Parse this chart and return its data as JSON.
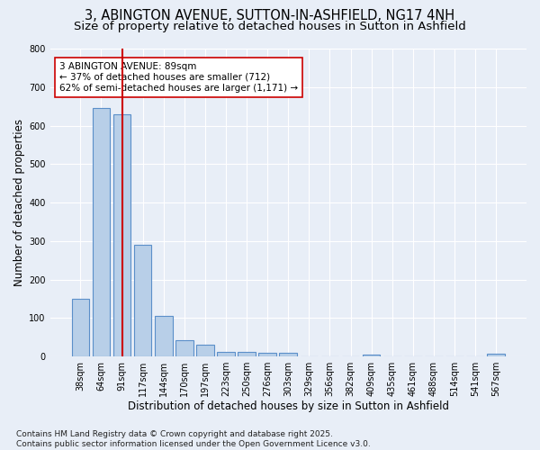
{
  "title": "3, ABINGTON AVENUE, SUTTON-IN-ASHFIELD, NG17 4NH",
  "subtitle": "Size of property relative to detached houses in Sutton in Ashfield",
  "xlabel": "Distribution of detached houses by size in Sutton in Ashfield",
  "ylabel": "Number of detached properties",
  "categories": [
    "38sqm",
    "64sqm",
    "91sqm",
    "117sqm",
    "144sqm",
    "170sqm",
    "197sqm",
    "223sqm",
    "250sqm",
    "276sqm",
    "303sqm",
    "329sqm",
    "356sqm",
    "382sqm",
    "409sqm",
    "435sqm",
    "461sqm",
    "488sqm",
    "514sqm",
    "541sqm",
    "567sqm"
  ],
  "values": [
    150,
    645,
    630,
    290,
    105,
    42,
    30,
    12,
    12,
    10,
    10,
    0,
    0,
    0,
    5,
    0,
    0,
    0,
    0,
    0,
    8
  ],
  "bar_color": "#b8cfe8",
  "bar_edge_color": "#5b8fc9",
  "vline_x_index": 2,
  "vline_color": "#cc0000",
  "annotation_text": "3 ABINGTON AVENUE: 89sqm\n← 37% of detached houses are smaller (712)\n62% of semi-detached houses are larger (1,171) →",
  "annotation_box_color": "#cc0000",
  "annotation_fill": "white",
  "ylim": [
    0,
    800
  ],
  "yticks": [
    0,
    100,
    200,
    300,
    400,
    500,
    600,
    700,
    800
  ],
  "bg_color": "#e8eef7",
  "plot_bg_color": "#e8eef7",
  "grid_color": "white",
  "footer": "Contains HM Land Registry data © Crown copyright and database right 2025.\nContains public sector information licensed under the Open Government Licence v3.0.",
  "title_fontsize": 10.5,
  "subtitle_fontsize": 9.5,
  "xlabel_fontsize": 8.5,
  "ylabel_fontsize": 8.5,
  "tick_fontsize": 7,
  "annotation_fontsize": 7.5,
  "footer_fontsize": 6.5
}
